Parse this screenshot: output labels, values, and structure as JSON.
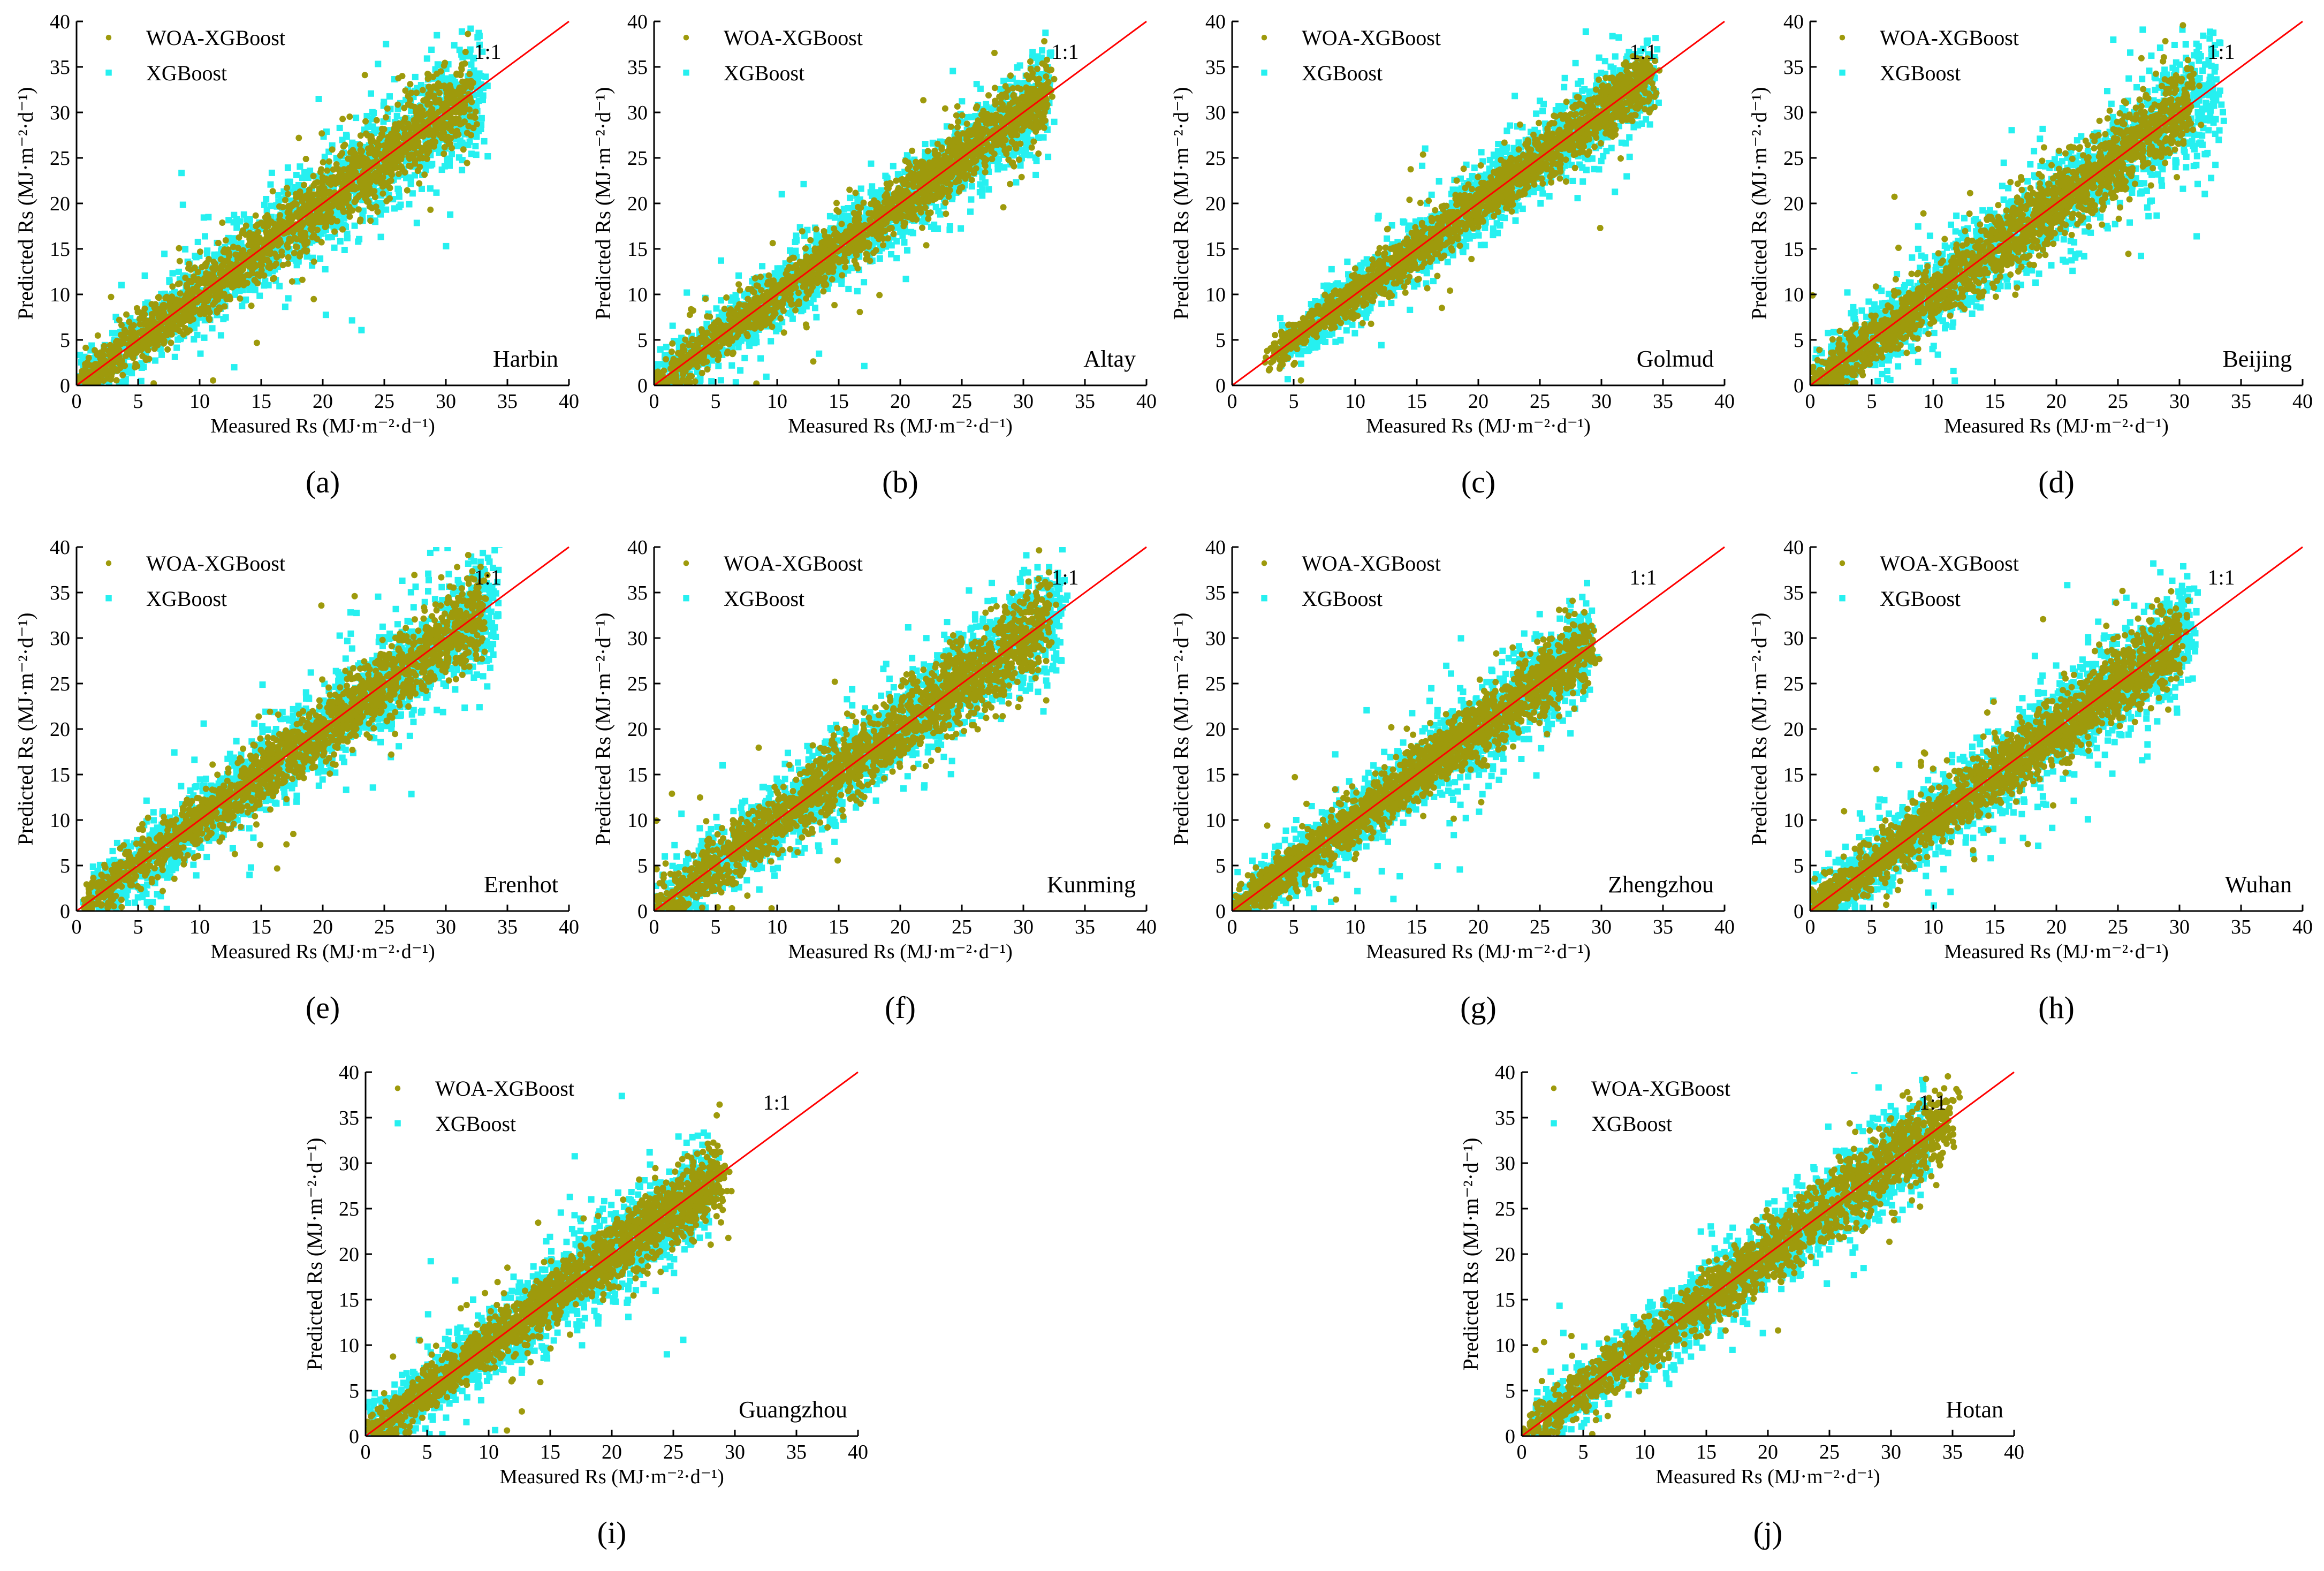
{
  "figure": {
    "legend_glyph_woa": "•",
    "legend_glyph_xgb": "▪"
  },
  "chart_data": [
    {
      "id": "a",
      "type": "scatter",
      "panel_label": "(a)",
      "station": "Harbin",
      "xlabel": "Measured Rs (MJ·m⁻²·d⁻¹)",
      "ylabel": "Predicted Rs (MJ·m⁻²·d⁻¹)",
      "xlim": [
        0,
        40
      ],
      "ylim": [
        0,
        40
      ],
      "xticks": [
        0,
        5,
        10,
        15,
        20,
        25,
        30,
        35,
        40
      ],
      "yticks": [
        0,
        5,
        10,
        15,
        20,
        25,
        30,
        35,
        40
      ],
      "ref_line_label": "1:1",
      "legend_position": "top-left",
      "series": [
        {
          "name": "WOA-XGBoost",
          "color": "#9e9a0c",
          "marker": "circle",
          "x_range": [
            0,
            32
          ],
          "spread": 1.9,
          "outlier_spread": 5
        },
        {
          "name": "XGBoost",
          "color": "#26f0f0",
          "marker": "square",
          "x_range": [
            0,
            33
          ],
          "spread": 2.6,
          "outlier_spread": 6.5
        }
      ]
    },
    {
      "id": "b",
      "type": "scatter",
      "panel_label": "(b)",
      "station": "Altay",
      "xlabel": "Measured Rs (MJ·m⁻²·d⁻¹)",
      "ylabel": "Predicted Rs (MJ·m⁻²·d⁻¹)",
      "xlim": [
        0,
        40
      ],
      "ylim": [
        0,
        40
      ],
      "xticks": [
        0,
        5,
        10,
        15,
        20,
        25,
        30,
        35,
        40
      ],
      "yticks": [
        0,
        5,
        10,
        15,
        20,
        25,
        30,
        35,
        40
      ],
      "ref_line_label": "1:1",
      "legend_position": "top-left",
      "series": [
        {
          "name": "WOA-XGBoost",
          "color": "#9e9a0c",
          "marker": "circle",
          "x_range": [
            0,
            32
          ],
          "spread": 1.5,
          "outlier_spread": 4
        },
        {
          "name": "XGBoost",
          "color": "#26f0f0",
          "marker": "square",
          "x_range": [
            0,
            32
          ],
          "spread": 2.1,
          "outlier_spread": 5
        }
      ]
    },
    {
      "id": "c",
      "type": "scatter",
      "panel_label": "(c)",
      "station": "Golmud",
      "xlabel": "Measured Rs (MJ·m⁻²·d⁻¹)",
      "ylabel": "Predicted Rs (MJ·m⁻²·d⁻¹)",
      "xlim": [
        0,
        40
      ],
      "ylim": [
        0,
        40
      ],
      "xticks": [
        0,
        5,
        10,
        15,
        20,
        25,
        30,
        35,
        40
      ],
      "yticks": [
        0,
        5,
        10,
        15,
        20,
        25,
        30,
        35,
        40
      ],
      "ref_line_label": "1:1",
      "legend_position": "top-left",
      "series": [
        {
          "name": "WOA-XGBoost",
          "color": "#9e9a0c",
          "marker": "circle",
          "x_range": [
            3,
            34
          ],
          "spread": 1.3,
          "outlier_spread": 3.5
        },
        {
          "name": "XGBoost",
          "color": "#26f0f0",
          "marker": "square",
          "x_range": [
            4,
            34
          ],
          "spread": 1.8,
          "outlier_spread": 4.5
        }
      ]
    },
    {
      "id": "d",
      "type": "scatter",
      "panel_label": "(d)",
      "station": "Beijing",
      "xlabel": "Measured Rs (MJ·m⁻²·d⁻¹)",
      "ylabel": "Predicted Rs (MJ·m⁻²·d⁻¹)",
      "xlim": [
        0,
        40
      ],
      "ylim": [
        0,
        40
      ],
      "xticks": [
        0,
        5,
        10,
        15,
        20,
        25,
        30,
        35,
        40
      ],
      "yticks": [
        0,
        5,
        10,
        15,
        20,
        25,
        30,
        35,
        40
      ],
      "ref_line_label": "1:1",
      "legend_position": "top-left",
      "series": [
        {
          "name": "WOA-XGBoost",
          "color": "#9e9a0c",
          "marker": "circle",
          "x_range": [
            0,
            31
          ],
          "spread": 2.0,
          "outlier_spread": 5
        },
        {
          "name": "XGBoost",
          "color": "#26f0f0",
          "marker": "square",
          "x_range": [
            0,
            33
          ],
          "spread": 2.8,
          "outlier_spread": 7
        }
      ]
    },
    {
      "id": "e",
      "type": "scatter",
      "panel_label": "(e)",
      "station": "Erenhot",
      "xlabel": "Measured Rs (MJ·m⁻²·d⁻¹)",
      "ylabel": "Predicted Rs (MJ·m⁻²·d⁻¹)",
      "xlim": [
        0,
        40
      ],
      "ylim": [
        0,
        40
      ],
      "xticks": [
        0,
        5,
        10,
        15,
        20,
        25,
        30,
        35,
        40
      ],
      "yticks": [
        0,
        5,
        10,
        15,
        20,
        25,
        30,
        35,
        40
      ],
      "ref_line_label": "1:1",
      "legend_position": "top-left",
      "series": [
        {
          "name": "WOA-XGBoost",
          "color": "#9e9a0c",
          "marker": "circle",
          "x_range": [
            1,
            33
          ],
          "spread": 1.8,
          "outlier_spread": 5
        },
        {
          "name": "XGBoost",
          "color": "#26f0f0",
          "marker": "square",
          "x_range": [
            1,
            34
          ],
          "spread": 2.4,
          "outlier_spread": 6
        }
      ]
    },
    {
      "id": "f",
      "type": "scatter",
      "panel_label": "(f)",
      "station": "Kunming",
      "xlabel": "Measured Rs (MJ·m⁻²·d⁻¹)",
      "ylabel": "Predicted Rs (MJ·m⁻²·d⁻¹)",
      "xlim": [
        0,
        40
      ],
      "ylim": [
        0,
        40
      ],
      "xticks": [
        0,
        5,
        10,
        15,
        20,
        25,
        30,
        35,
        40
      ],
      "yticks": [
        0,
        5,
        10,
        15,
        20,
        25,
        30,
        35,
        40
      ],
      "ref_line_label": "1:1",
      "legend_position": "top-left",
      "series": [
        {
          "name": "WOA-XGBoost",
          "color": "#9e9a0c",
          "marker": "circle",
          "x_range": [
            0,
            32
          ],
          "spread": 2.0,
          "outlier_spread": 5
        },
        {
          "name": "XGBoost",
          "color": "#26f0f0",
          "marker": "square",
          "x_range": [
            0,
            33
          ],
          "spread": 2.6,
          "outlier_spread": 6.5
        }
      ]
    },
    {
      "id": "g",
      "type": "scatter",
      "panel_label": "(g)",
      "station": "Zhengzhou",
      "xlabel": "Measured Rs (MJ·m⁻²·d⁻¹)",
      "ylabel": "Predicted Rs (MJ·m⁻²·d⁻¹)",
      "xlim": [
        0,
        40
      ],
      "ylim": [
        0,
        40
      ],
      "xticks": [
        0,
        5,
        10,
        15,
        20,
        25,
        30,
        35,
        40
      ],
      "yticks": [
        0,
        5,
        10,
        15,
        20,
        25,
        30,
        35,
        40
      ],
      "ref_line_label": "1:1",
      "legend_position": "top-left",
      "series": [
        {
          "name": "WOA-XGBoost",
          "color": "#9e9a0c",
          "marker": "circle",
          "x_range": [
            0,
            29
          ],
          "spread": 1.6,
          "outlier_spread": 4.5
        },
        {
          "name": "XGBoost",
          "color": "#26f0f0",
          "marker": "square",
          "x_range": [
            0,
            29
          ],
          "spread": 2.2,
          "outlier_spread": 5.5
        }
      ]
    },
    {
      "id": "h",
      "type": "scatter",
      "panel_label": "(h)",
      "station": "Wuhan",
      "xlabel": "Measured Rs (MJ·m⁻²·d⁻¹)",
      "ylabel": "Predicted Rs (MJ·m⁻²·d⁻¹)",
      "xlim": [
        0,
        40
      ],
      "ylim": [
        0,
        40
      ],
      "xticks": [
        0,
        5,
        10,
        15,
        20,
        25,
        30,
        35,
        40
      ],
      "yticks": [
        0,
        5,
        10,
        15,
        20,
        25,
        30,
        35,
        40
      ],
      "ref_line_label": "1:1",
      "legend_position": "top-left",
      "series": [
        {
          "name": "WOA-XGBoost",
          "color": "#9e9a0c",
          "marker": "circle",
          "x_range": [
            0,
            30
          ],
          "spread": 1.9,
          "outlier_spread": 5
        },
        {
          "name": "XGBoost",
          "color": "#26f0f0",
          "marker": "square",
          "x_range": [
            0,
            31
          ],
          "spread": 2.6,
          "outlier_spread": 6.5
        }
      ]
    },
    {
      "id": "i",
      "type": "scatter",
      "panel_label": "(i)",
      "station": "Guangzhou",
      "xlabel": "Measured Rs (MJ·m⁻²·d⁻¹)",
      "ylabel": "Predicted Rs (MJ·m⁻²·d⁻¹)",
      "xlim": [
        0,
        40
      ],
      "ylim": [
        0,
        40
      ],
      "xticks": [
        0,
        5,
        10,
        15,
        20,
        25,
        30,
        35,
        40
      ],
      "yticks": [
        0,
        5,
        10,
        15,
        20,
        25,
        30,
        35,
        40
      ],
      "ref_line_label": "1:1",
      "legend_position": "top-left",
      "series": [
        {
          "name": "WOA-XGBoost",
          "color": "#9e9a0c",
          "marker": "circle",
          "x_range": [
            0,
            29
          ],
          "spread": 1.6,
          "outlier_spread": 4.5
        },
        {
          "name": "XGBoost",
          "color": "#26f0f0",
          "marker": "square",
          "x_range": [
            0,
            28
          ],
          "spread": 2.4,
          "outlier_spread": 6
        }
      ]
    },
    {
      "id": "j",
      "type": "scatter",
      "panel_label": "(j)",
      "station": "Hotan",
      "xlabel": "Measured Rs (MJ·m⁻²·d⁻¹)",
      "ylabel": "Predicted Rs (MJ·m⁻²·d⁻¹)",
      "xlim": [
        0,
        40
      ],
      "ylim": [
        0,
        40
      ],
      "xticks": [
        0,
        5,
        10,
        15,
        20,
        25,
        30,
        35,
        40
      ],
      "yticks": [
        0,
        5,
        10,
        15,
        20,
        25,
        30,
        35,
        40
      ],
      "ref_line_label": "1:1",
      "legend_position": "top-left",
      "series": [
        {
          "name": "WOA-XGBoost",
          "color": "#9e9a0c",
          "marker": "circle",
          "x_range": [
            0,
            35
          ],
          "spread": 1.7,
          "outlier_spread": 4.5
        },
        {
          "name": "XGBoost",
          "color": "#26f0f0",
          "marker": "square",
          "x_range": [
            1,
            33
          ],
          "spread": 2.2,
          "outlier_spread": 5.5
        }
      ]
    }
  ]
}
